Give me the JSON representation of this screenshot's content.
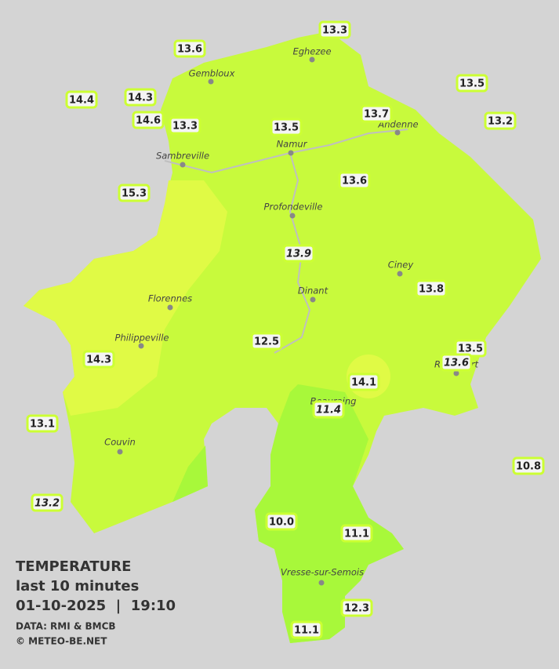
{
  "legend": {
    "title": "TEMPERATURE",
    "subtitle": "last 10 minutes",
    "datetime": "01-10-2025  |  19:10",
    "source": "DATA: RMI & BMCB",
    "copyright": "© METEO-BE.NET"
  },
  "cities": [
    "Eghezee",
    "Gembloux",
    "Andenne",
    "Namur",
    "Sambreville",
    "Profondeville",
    "Ciney",
    "Dinant",
    "Florennes",
    "Philippeville",
    "Rochefort",
    "Beauraing",
    "Couvin",
    "Vresse-sur-Semois"
  ],
  "stations": [
    {
      "label": "13.3",
      "italic": false
    },
    {
      "label": "13.6",
      "italic": false
    },
    {
      "label": "13.5",
      "italic": false
    },
    {
      "label": "14.4",
      "italic": false
    },
    {
      "label": "14.3",
      "italic": false
    },
    {
      "label": "13.7",
      "italic": false
    },
    {
      "label": "14.6",
      "italic": false
    },
    {
      "label": "13.3",
      "italic": false
    },
    {
      "label": "13.5",
      "italic": false
    },
    {
      "label": "13.2",
      "italic": false
    },
    {
      "label": "15.3",
      "italic": false
    },
    {
      "label": "13.6",
      "italic": false
    },
    {
      "label": "13.9",
      "italic": true
    },
    {
      "label": "13.8",
      "italic": false
    },
    {
      "label": "12.5",
      "italic": false
    },
    {
      "label": "13.5",
      "italic": false
    },
    {
      "label": "14.3",
      "italic": false
    },
    {
      "label": "13.6",
      "italic": true
    },
    {
      "label": "14.1",
      "italic": false
    },
    {
      "label": "11.4",
      "italic": true
    },
    {
      "label": "13.1",
      "italic": false
    },
    {
      "label": "10.8",
      "italic": false
    },
    {
      "label": "13.2",
      "italic": true
    },
    {
      "label": "10.0",
      "italic": false
    },
    {
      "label": "11.1",
      "italic": false
    },
    {
      "label": "12.3",
      "italic": false
    },
    {
      "label": "11.1",
      "italic": false
    }
  ]
}
